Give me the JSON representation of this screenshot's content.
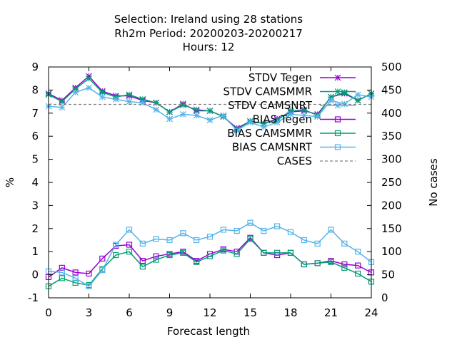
{
  "chart_data": {
    "type": "line",
    "title_lines": [
      "Selection: Ireland using    28 stations",
      "Rh2m   Period: 20200203-20200217",
      "Hours:  12"
    ],
    "xlabel": "Forecast length",
    "ylabel": "%",
    "y2label": "No cases",
    "xlim": [
      0,
      24
    ],
    "ylim": [
      -1,
      9
    ],
    "y2lim": [
      0,
      500
    ],
    "x_ticks": [
      0,
      3,
      6,
      9,
      12,
      15,
      18,
      21,
      24
    ],
    "y_ticks": [
      -1,
      0,
      1,
      2,
      3,
      4,
      5,
      6,
      7,
      8,
      9
    ],
    "y2_ticks": [
      0,
      50,
      100,
      150,
      200,
      250,
      300,
      350,
      400,
      450,
      500
    ],
    "legend_position": "top-right",
    "x": [
      0,
      1,
      2,
      3,
      4,
      5,
      6,
      7,
      8,
      9,
      10,
      11,
      12,
      13,
      14,
      15,
      16,
      17,
      18,
      19,
      20,
      21,
      22,
      23,
      24
    ],
    "series": [
      {
        "name": "STDV Tegen",
        "axis": "y1",
        "color": "#9400d3",
        "marker": "star",
        "values": [
          7.85,
          7.55,
          8.1,
          8.6,
          7.95,
          7.75,
          7.75,
          7.55,
          7.45,
          7.05,
          7.4,
          7.1,
          7.1,
          6.85,
          6.35,
          6.65,
          6.55,
          6.75,
          7.05,
          7.1,
          6.95,
          7.7,
          7.85,
          7.55,
          7.85
        ]
      },
      {
        "name": "STDV CAMSMMR",
        "axis": "y1",
        "color": "#009e73",
        "marker": "star",
        "values": [
          7.8,
          7.5,
          8.05,
          8.5,
          7.9,
          7.7,
          7.8,
          7.6,
          7.45,
          7.05,
          7.35,
          7.15,
          7.1,
          6.85,
          6.3,
          6.65,
          6.55,
          6.7,
          7.1,
          7.15,
          6.9,
          7.7,
          7.9,
          7.55,
          7.85
        ]
      },
      {
        "name": "STDV CAMSNRT",
        "axis": "y1",
        "color": "#56b4e9",
        "marker": "star",
        "values": [
          7.3,
          7.25,
          7.9,
          8.1,
          7.7,
          7.6,
          7.5,
          7.45,
          7.15,
          6.75,
          6.95,
          6.9,
          6.7,
          6.9,
          6.25,
          6.6,
          6.4,
          6.6,
          6.95,
          6.9,
          6.85,
          7.55,
          7.4,
          7.8,
          7.7
        ]
      },
      {
        "name": "BIAS Tegen",
        "axis": "y1",
        "color": "#9400d3",
        "marker": "square",
        "values": [
          -0.1,
          0.3,
          0.1,
          0.05,
          0.7,
          1.25,
          1.3,
          0.6,
          0.8,
          0.9,
          1.0,
          0.6,
          0.9,
          1.1,
          1.0,
          1.6,
          0.95,
          0.85,
          0.95,
          0.45,
          0.5,
          0.6,
          0.45,
          0.4,
          0.1
        ]
      },
      {
        "name": "BIAS CAMSMMR",
        "axis": "y1",
        "color": "#009e73",
        "marker": "square",
        "values": [
          -0.5,
          -0.15,
          -0.35,
          -0.45,
          0.25,
          0.85,
          1.0,
          0.35,
          0.65,
          0.85,
          0.95,
          0.55,
          0.8,
          1.05,
          0.9,
          1.55,
          0.95,
          0.95,
          0.95,
          0.45,
          0.5,
          0.55,
          0.3,
          0.05,
          -0.3
        ]
      },
      {
        "name": "BIAS CAMSNRT",
        "axis": "y1",
        "color": "#56b4e9",
        "marker": "square",
        "values": [
          0.15,
          0.1,
          -0.15,
          -0.5,
          0.2,
          1.3,
          1.95,
          1.35,
          1.55,
          1.5,
          1.8,
          1.5,
          1.65,
          1.95,
          1.9,
          2.25,
          1.9,
          2.1,
          1.85,
          1.5,
          1.35,
          1.95,
          1.35,
          1.0,
          0.55
        ]
      },
      {
        "name": "CASES",
        "axis": "y2",
        "color": "#808080",
        "dashed": true,
        "values": [
          419,
          419,
          419,
          419,
          419,
          419,
          419,
          419,
          419,
          419,
          419,
          419,
          419,
          419,
          419,
          419,
          419,
          419,
          419,
          419,
          419,
          419,
          419,
          419,
          419
        ]
      }
    ]
  }
}
